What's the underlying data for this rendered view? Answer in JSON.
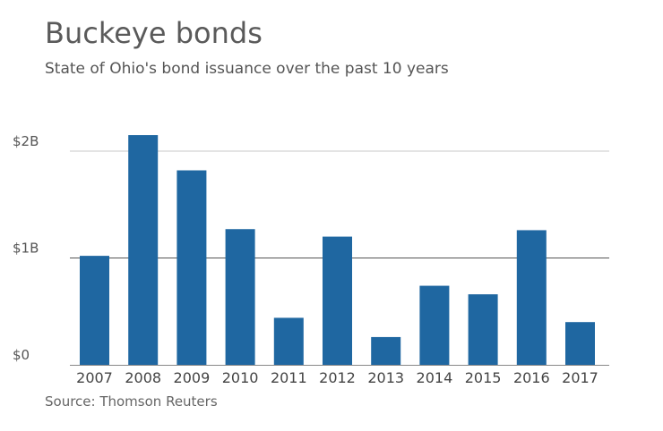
{
  "title": "Buckeye bonds",
  "subtitle": "State of Ohio's bond issuance over the past 10 years",
  "source": "Source: Thomson Reuters",
  "colors": {
    "bar": "#1f67a1",
    "grid": "#c8c8c8",
    "grid_mid": "#555555",
    "baseline": "#888888"
  },
  "chart_data": {
    "type": "bar",
    "title": "Buckeye bonds",
    "subtitle": "State of Ohio's bond issuance over the past 10 years",
    "xlabel": "",
    "ylabel": "",
    "categories": [
      "2007",
      "2008",
      "2009",
      "2010",
      "2011",
      "2012",
      "2013",
      "2014",
      "2015",
      "2016",
      "2017"
    ],
    "values": [
      1.02,
      2.15,
      1.82,
      1.27,
      0.44,
      1.2,
      0.26,
      0.74,
      0.66,
      1.26,
      0.4
    ],
    "ylim": [
      0,
      2
    ],
    "yticks": [
      0,
      1,
      2
    ],
    "ytick_labels": [
      "$0",
      "$1B",
      "$2B"
    ],
    "grid": true,
    "legend": "none"
  }
}
